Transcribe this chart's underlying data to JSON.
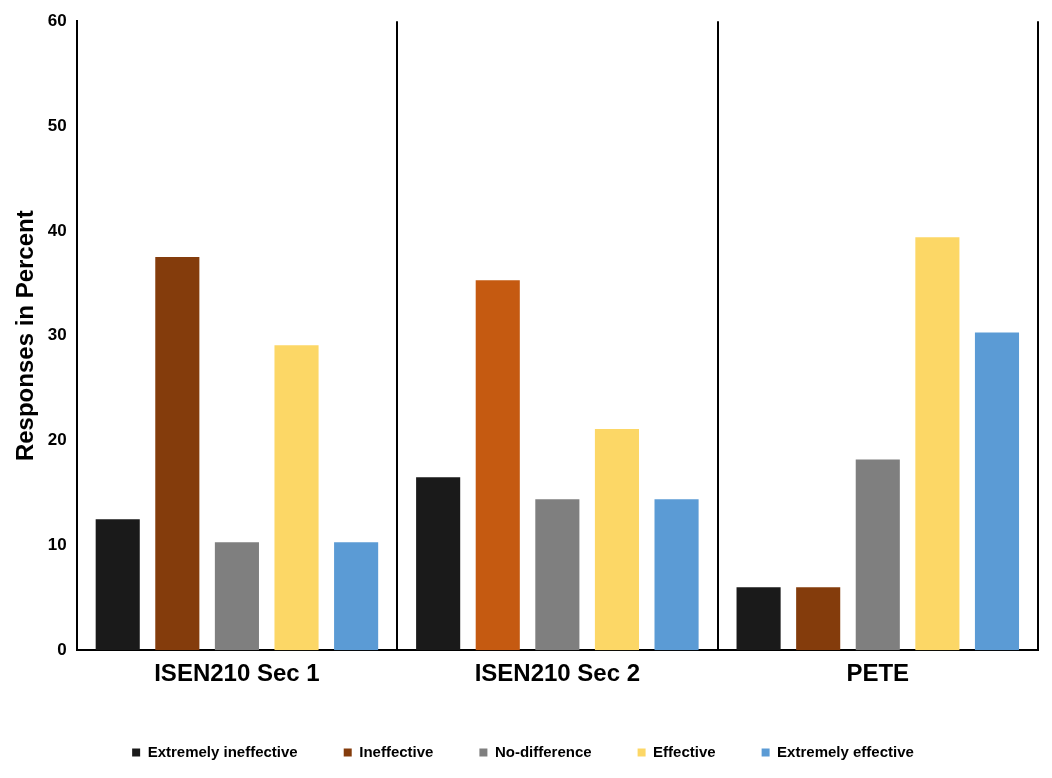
{
  "chart_data": {
    "type": "bar",
    "ylabel": "Responses in Percent",
    "categories": [
      "ISEN210 Sec 1",
      "ISEN210 Sec 2",
      "PETE"
    ],
    "series": [
      {
        "name": "Extremely ineffective",
        "color": "#1a1a1a",
        "values": [
          12.5,
          16.5,
          6.0
        ]
      },
      {
        "name": "Ineffective",
        "color": "#843c0c",
        "colors": [
          "#843c0c",
          "#c55a11",
          "#843c0c"
        ],
        "values": [
          37.5,
          35.3,
          6.0
        ]
      },
      {
        "name": "No-difference",
        "color": "#7f7f7f",
        "values": [
          10.3,
          14.4,
          18.2
        ]
      },
      {
        "name": "Effective",
        "color": "#fcd766",
        "values": [
          29.1,
          21.1,
          39.4
        ]
      },
      {
        "name": "Extremely effective",
        "color": "#5b9bd5",
        "values": [
          10.3,
          14.4,
          30.3
        ]
      }
    ],
    "ylim": [
      0,
      60
    ],
    "yticks": [
      0,
      10,
      20,
      30,
      40,
      50,
      60
    ],
    "grid": "x",
    "legend": "bottom"
  }
}
